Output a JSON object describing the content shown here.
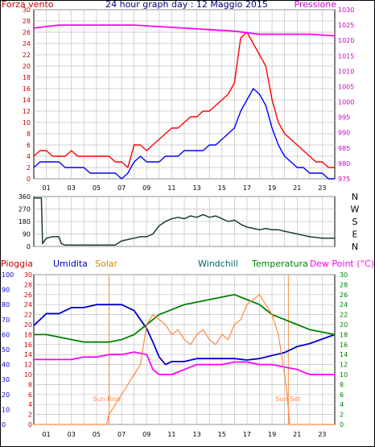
{
  "chart_data": [
    {
      "type": "line",
      "title": "24 hour graph day : 12 Maggio 2015",
      "left_axis_label": "Forza vento",
      "right_axis_label": "Pressione",
      "left_ylim": [
        0,
        30
      ],
      "left_ticks": [
        "0",
        "2",
        "4",
        "6",
        "8",
        "10",
        "12",
        "14",
        "16",
        "18",
        "20",
        "22",
        "24",
        "26",
        "28",
        "30"
      ],
      "right_ylim": [
        975,
        1030
      ],
      "right_ticks": [
        "975",
        "980",
        "985",
        "990",
        "995",
        "1000",
        "1005",
        "1010",
        "1015",
        "1020",
        "1025",
        "1030"
      ],
      "x_hours": [
        0,
        24
      ],
      "x_ticks": [
        "01",
        "03",
        "05",
        "07",
        "09",
        "11",
        "13",
        "15",
        "17",
        "19",
        "21",
        "23"
      ],
      "series": [
        {
          "key": "gust",
          "color": "#ff0000",
          "axis": "left",
          "x": [
            0,
            0.5,
            1,
            1.5,
            2,
            2.5,
            3,
            3.5,
            4,
            4.5,
            5,
            5.5,
            6,
            6.5,
            7,
            7.5,
            8,
            8.5,
            9,
            9.5,
            10,
            10.5,
            11,
            11.5,
            12,
            12.5,
            13,
            13.5,
            14,
            14.5,
            15,
            15.5,
            16,
            16.5,
            17,
            17.5,
            18,
            18.5,
            19,
            19.5,
            20,
            20.5,
            21,
            21.5,
            22,
            22.5,
            23,
            23.5,
            24
          ],
          "y": [
            4,
            5,
            5,
            4,
            4,
            4,
            5,
            4,
            4,
            4,
            4,
            4,
            4,
            3,
            3,
            2,
            6,
            6,
            5,
            6,
            7,
            8,
            9,
            9,
            10,
            11,
            11,
            12,
            12,
            13,
            14,
            15,
            17,
            25,
            26,
            24,
            22,
            20,
            14,
            10,
            8,
            7,
            6,
            5,
            4,
            3,
            3,
            2,
            2
          ]
        },
        {
          "key": "wind",
          "color": "#0000ff",
          "axis": "left",
          "x": [
            0,
            0.5,
            1,
            1.5,
            2,
            2.5,
            3,
            3.5,
            4,
            4.5,
            5,
            5.5,
            6,
            6.5,
            7,
            7.5,
            8,
            8.5,
            9,
            9.5,
            10,
            10.5,
            11,
            11.5,
            12,
            12.5,
            13,
            13.5,
            14,
            14.5,
            15,
            15.5,
            16,
            16.5,
            17,
            17.5,
            18,
            18.5,
            19,
            19.5,
            20,
            20.5,
            21,
            21.5,
            22,
            22.5,
            23,
            23.5,
            24
          ],
          "y": [
            2,
            3,
            3,
            3,
            3,
            2,
            2,
            2,
            2,
            1,
            1,
            1,
            1,
            1,
            0,
            1,
            3,
            4,
            3,
            3,
            3,
            4,
            4,
            4,
            5,
            5,
            5,
            5,
            6,
            6,
            7,
            8,
            9,
            12,
            14,
            16,
            15,
            13,
            9,
            6,
            4,
            3,
            2,
            2,
            1,
            1,
            1,
            0,
            0
          ]
        },
        {
          "key": "pressure",
          "color": "#ff00ff",
          "axis": "right",
          "x": [
            0,
            2,
            4,
            6,
            8,
            10,
            12,
            14,
            16,
            17,
            18,
            19,
            20,
            22,
            24
          ],
          "y": [
            1024,
            1025,
            1025,
            1025,
            1025,
            1024.5,
            1024,
            1023.5,
            1023,
            1022.5,
            1022,
            1022,
            1022,
            1022,
            1021.5
          ]
        }
      ]
    },
    {
      "type": "line",
      "ylim": [
        0,
        360
      ],
      "y_ticks": [
        "360",
        "270",
        "180",
        "90",
        "0"
      ],
      "right_labels": [
        "N",
        "W",
        "S",
        "E",
        "N"
      ],
      "x_hours": [
        0,
        24
      ],
      "series": [
        {
          "key": "direction",
          "color": "#1c3a3a",
          "x": [
            0,
            0.6,
            0.7,
            1,
            1.5,
            2,
            2.2,
            2.5,
            3,
            4,
            5,
            6,
            6.5,
            7,
            7.5,
            8,
            8.5,
            9,
            9.5,
            10,
            10.5,
            11,
            11.5,
            12,
            12.5,
            13,
            13.5,
            14,
            14.5,
            15,
            15.5,
            16,
            16.5,
            17,
            17.5,
            18,
            18.5,
            19,
            19.5,
            20,
            20.5,
            21,
            21.5,
            22,
            23,
            24
          ],
          "y": [
            350,
            350,
            20,
            60,
            70,
            70,
            20,
            10,
            10,
            10,
            10,
            10,
            10,
            40,
            50,
            60,
            70,
            70,
            90,
            150,
            180,
            200,
            210,
            200,
            220,
            210,
            230,
            210,
            220,
            200,
            180,
            190,
            160,
            140,
            130,
            120,
            130,
            120,
            120,
            110,
            100,
            90,
            80,
            70,
            60,
            60
          ]
        }
      ]
    },
    {
      "type": "line",
      "left_axis_label": "Pioggia",
      "labels": {
        "humidity": "Umidita",
        "solar": "Solar",
        "windchill": "Windchill",
        "temperature": "Temperatura",
        "dewpoint": "Dew Point (°C)"
      },
      "humidity_ticks": [
        "0",
        "10",
        "20",
        "30",
        "40",
        "50",
        "60",
        "70",
        "80",
        "90",
        "100"
      ],
      "rain_ticks": [
        "0",
        "2",
        "4",
        "6",
        "8",
        "10",
        "12",
        "14",
        "16",
        "18",
        "20",
        "22",
        "24",
        "26",
        "28",
        "30"
      ],
      "right_ticks": [
        "0",
        "2",
        "4",
        "6",
        "8",
        "10",
        "12",
        "14",
        "16",
        "18",
        "20",
        "22",
        "24",
        "26",
        "28",
        "30"
      ],
      "x_ticks": [
        "01",
        "03",
        "05",
        "07",
        "09",
        "11",
        "13",
        "15",
        "17",
        "19",
        "21",
        "23"
      ],
      "annotations": [
        "Sun Rise",
        "Sun Set"
      ],
      "x_hours": [
        0,
        24
      ],
      "series": [
        {
          "key": "humidity",
          "color": "#0000cc",
          "scale": "humidity",
          "x": [
            0,
            1,
            2,
            3,
            4,
            5,
            6,
            7,
            7.5,
            8,
            8.5,
            9,
            9.5,
            10,
            10.5,
            11,
            12,
            13,
            14,
            15,
            16,
            17,
            18,
            19,
            20,
            21,
            22,
            23,
            24
          ],
          "y": [
            66,
            74,
            74,
            78,
            78,
            80,
            80,
            80,
            78,
            76,
            70,
            64,
            55,
            45,
            40,
            42,
            42,
            44,
            44,
            44,
            44,
            43,
            44,
            46,
            48,
            52,
            54,
            57,
            60
          ]
        },
        {
          "key": "temperature",
          "color": "#008000",
          "scale": "right",
          "x": [
            0,
            1,
            2,
            3,
            4,
            5,
            6,
            7,
            8,
            8.5,
            9,
            9.5,
            10,
            11,
            12,
            13,
            14,
            15,
            16,
            17,
            18,
            19,
            20,
            21,
            22,
            23,
            24
          ],
          "y": [
            18,
            18,
            17.5,
            17,
            16.5,
            16.5,
            16.5,
            17,
            18,
            19,
            20,
            21,
            22,
            23,
            24,
            24.5,
            25,
            25.5,
            26,
            25,
            24,
            22,
            21,
            20,
            19,
            18.5,
            18
          ]
        },
        {
          "key": "dewpoint",
          "color": "#ff00ff",
          "scale": "right",
          "x": [
            0,
            1,
            2,
            3,
            4,
            5,
            6,
            7,
            8,
            9,
            9.5,
            10,
            11,
            12,
            13,
            14,
            15,
            16,
            17,
            18,
            19,
            20,
            21,
            22,
            23,
            24
          ],
          "y": [
            13,
            13,
            13,
            13,
            13.5,
            13.5,
            14,
            14,
            14.5,
            14,
            11,
            10,
            10,
            11,
            12,
            12,
            12,
            12.5,
            12.5,
            12,
            12,
            11.5,
            11,
            10,
            10,
            10
          ]
        },
        {
          "key": "solar",
          "color": "#ff8844",
          "scale": "rain",
          "x": [
            0,
            5.8,
            6,
            6.5,
            7,
            7.5,
            8,
            8.5,
            9,
            9.5,
            10,
            10.5,
            11,
            11.5,
            12,
            12.5,
            13,
            13.5,
            14,
            14.5,
            15,
            15.5,
            16,
            16.5,
            17,
            17.5,
            18,
            18.5,
            19,
            19.5,
            20,
            20.2,
            20.4,
            24
          ],
          "y": [
            0,
            0,
            2,
            4,
            6,
            8,
            10,
            12,
            20,
            22,
            21,
            20,
            18,
            19,
            17,
            16,
            18,
            19,
            17,
            16,
            18,
            17,
            20,
            21,
            24,
            25,
            26,
            24,
            22,
            18,
            10,
            6,
            0,
            0
          ]
        }
      ]
    }
  ]
}
